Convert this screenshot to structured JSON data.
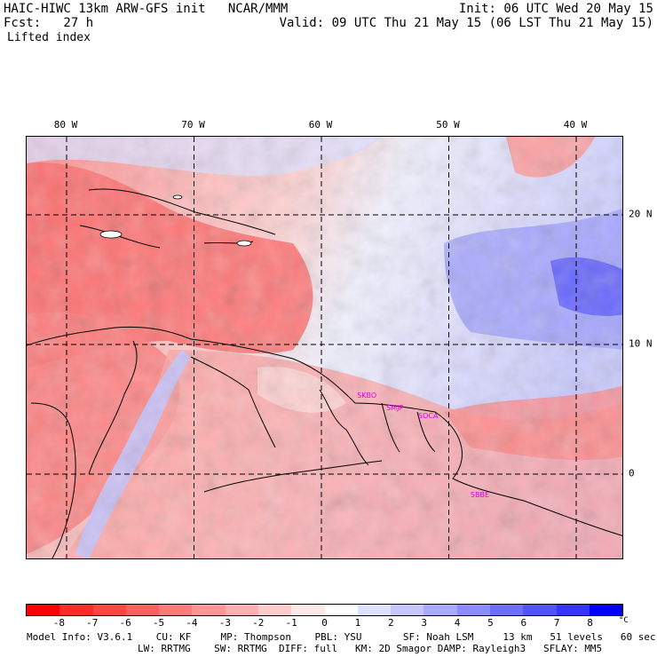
{
  "header": {
    "model_line": "HAIC-HIWC 13km ARW-GFS init   NCAR/MMM",
    "forecast_line": "Fcst:   27 h",
    "field_name": "Lifted index",
    "init_line": "Init: 06 UTC Wed 20 May 15",
    "valid_line": "Valid: 09 UTC Thu 21 May 15 (06 LST Thu 21 May 15)"
  },
  "map": {
    "longitude_labels": [
      {
        "text": "80 W",
        "lon": -80
      },
      {
        "text": "70 W",
        "lon": -70
      },
      {
        "text": "60 W",
        "lon": -60
      },
      {
        "text": "50 W",
        "lon": -50
      },
      {
        "text": "40 W",
        "lon": -40
      }
    ],
    "latitude_labels": [
      {
        "text": "20 N",
        "lat": 20
      },
      {
        "text": "10 N",
        "lat": 10
      },
      {
        "text": "0",
        "lat": 0
      }
    ],
    "stations": [
      {
        "text": "SKBO",
        "lon": -57.2,
        "lat": 6.4
      },
      {
        "text": "SMJP",
        "lon": -54.9,
        "lat": 5.4
      },
      {
        "text": "SOCA",
        "lon": -52.4,
        "lat": 4.8
      },
      {
        "text": "SBBE",
        "lon": -48.3,
        "lat": -1.3
      }
    ]
  },
  "colorbar": {
    "labels": [
      "-8",
      "-7",
      "-6",
      "-5",
      "-4",
      "-3",
      "-2",
      "-1",
      "0",
      "1",
      "2",
      "3",
      "4",
      "5",
      "6",
      "7",
      "8"
    ],
    "unit": "°C",
    "colors": [
      "#ff0000",
      "#ff2a2a",
      "#ff4545",
      "#ff5f5f",
      "#ff7a7a",
      "#ff9595",
      "#ffb0b0",
      "#ffcccc",
      "#ffe8e8",
      "#ffffff",
      "#e0e0ff",
      "#c6c6ff",
      "#a9a9ff",
      "#8c8cff",
      "#6f6fff",
      "#5252ff",
      "#3535ff",
      "#0000ff"
    ]
  },
  "model_info": {
    "line1": "Model Info: V3.6.1    CU: KF     MP: Thompson    PBL: YSU       SF: Noah LSM     13 km   51 levels   60 sec",
    "line2": "LW: RRTMG    SW: RRTMG  DIFF: full   KM: 2D Smagor DAMP: Rayleigh3   SFLAY: MM5"
  },
  "colors": {
    "unstable_red": "#ff6a6a",
    "stable_blue": "#5a5aff",
    "coast_line": "#000000",
    "station_label": "#e000e0"
  }
}
